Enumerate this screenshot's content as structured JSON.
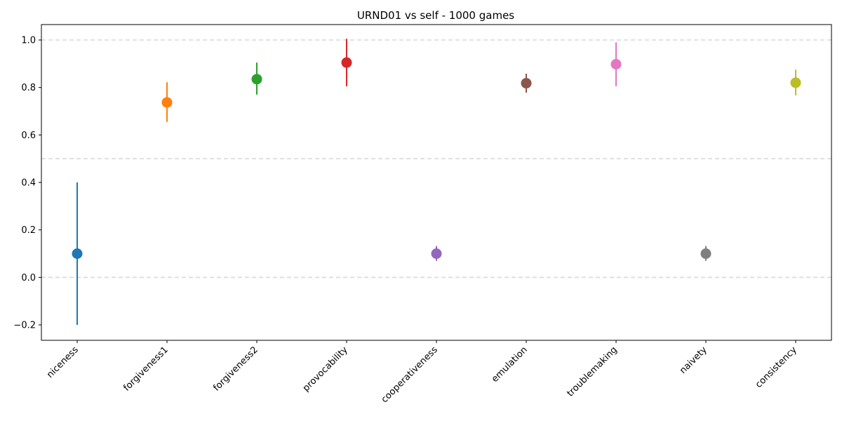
{
  "chart_data": {
    "type": "scatter",
    "title": "URND01 vs self - 1000 games",
    "xlabel": "",
    "ylabel": "",
    "categories": [
      "niceness",
      "forgiveness1",
      "forgiveness2",
      "provocability",
      "cooperativeness",
      "emulation",
      "troublemaking",
      "naivety",
      "consistency"
    ],
    "series": [
      {
        "category": "niceness",
        "value": 0.1,
        "err_low": -0.2,
        "err_high": 0.4,
        "color": "#1f77b4"
      },
      {
        "category": "forgiveness1",
        "value": 0.737,
        "err_low": 0.655,
        "err_high": 0.822,
        "color": "#ff7f0e"
      },
      {
        "category": "forgiveness2",
        "value": 0.835,
        "err_low": 0.77,
        "err_high": 0.905,
        "color": "#2ca02c"
      },
      {
        "category": "provocability",
        "value": 0.905,
        "err_low": 0.805,
        "err_high": 1.005,
        "color": "#d62728"
      },
      {
        "category": "cooperativeness",
        "value": 0.1,
        "err_low": 0.07,
        "err_high": 0.132,
        "color": "#9467bd"
      },
      {
        "category": "emulation",
        "value": 0.818,
        "err_low": 0.778,
        "err_high": 0.858,
        "color": "#8c564b"
      },
      {
        "category": "troublemaking",
        "value": 0.898,
        "err_low": 0.805,
        "err_high": 0.99,
        "color": "#e377c2"
      },
      {
        "category": "naivety",
        "value": 0.1,
        "err_low": 0.07,
        "err_high": 0.132,
        "color": "#7f7f7f"
      },
      {
        "category": "consistency",
        "value": 0.82,
        "err_low": 0.767,
        "err_high": 0.875,
        "color": "#bcbd22"
      }
    ],
    "ylim": [
      -0.265,
      1.065
    ],
    "yticks": [
      "−0.2",
      "0.0",
      "0.2",
      "0.4",
      "0.6",
      "0.8",
      "1.0"
    ],
    "reference_lines": [
      0.0,
      0.5,
      1.0
    ],
    "grid": false,
    "legend": "none"
  }
}
